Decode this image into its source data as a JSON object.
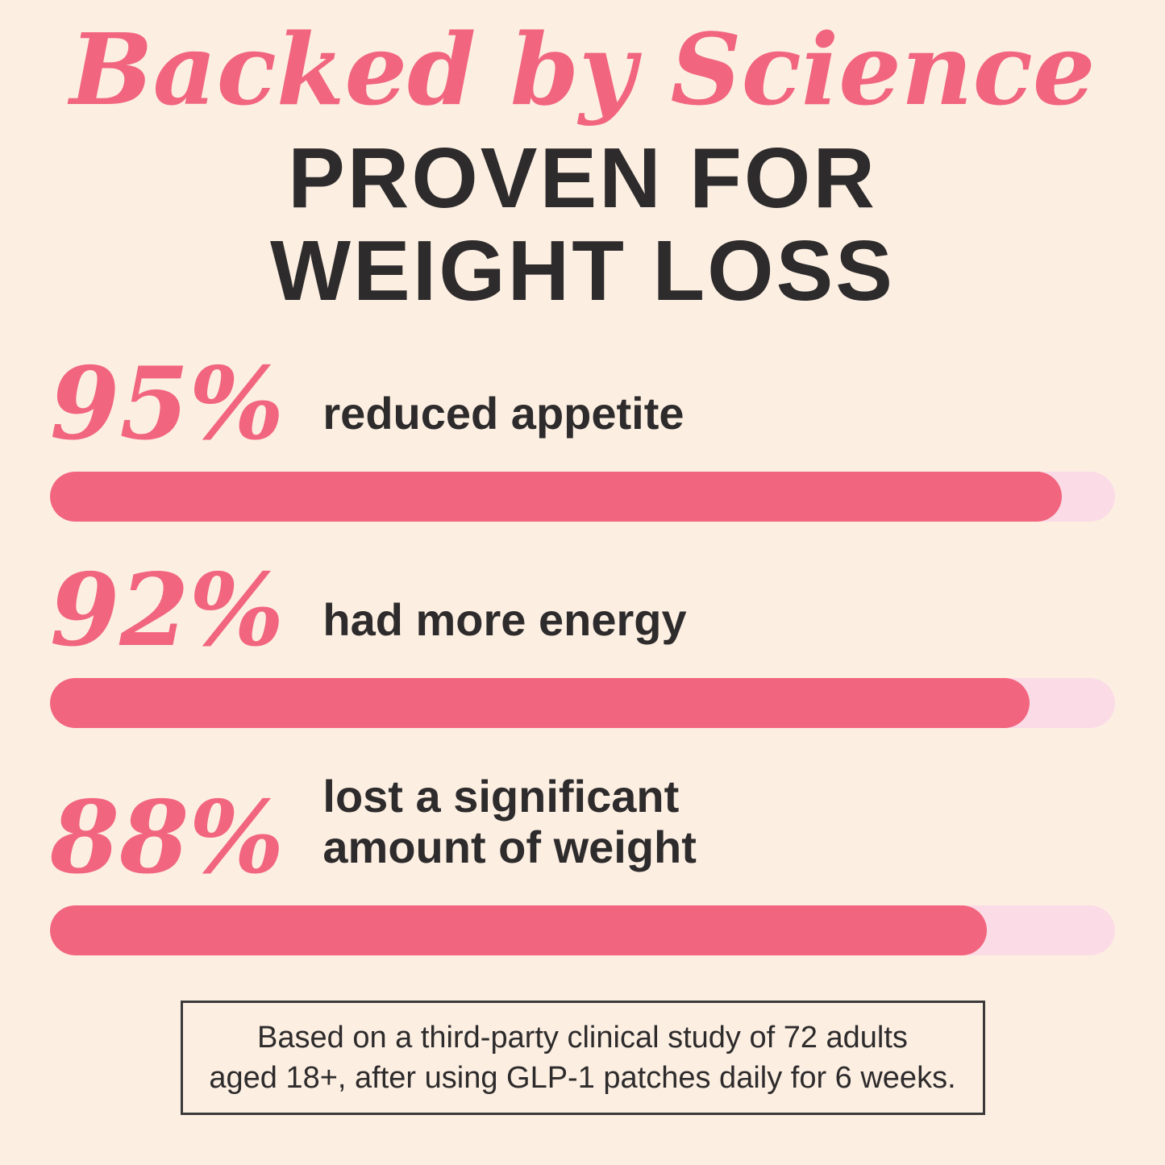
{
  "header": {
    "script_title": "Backed by Science",
    "main_title_line1": "PROVEN FOR",
    "main_title_line2": "WEIGHT LOSS"
  },
  "stats": [
    {
      "percent": "95%",
      "label": "reduced appetite",
      "value": 95
    },
    {
      "percent": "92%",
      "label": "had more energy",
      "value": 92
    },
    {
      "percent": "88%",
      "label": "lost a significant amount of weight",
      "value": 88
    }
  ],
  "footnote": {
    "line1": "Based on a third-party clinical study of 72 adults",
    "line2": "aged 18+, after using GLP-1 patches daily for 6 weeks."
  },
  "colors": {
    "background": "#fcefe2",
    "accent_pink": "#f2657f",
    "bar_track_pink": "#fbdbe6",
    "text_dark": "#2e2b2c",
    "footnote_border": "#3a3a3a"
  },
  "chart_data": {
    "type": "bar",
    "orientation": "horizontal",
    "title": "Backed by Science — PROVEN FOR WEIGHT LOSS",
    "categories": [
      "reduced appetite",
      "had more energy",
      "lost a significant amount of weight"
    ],
    "values": [
      95,
      92,
      88
    ],
    "value_labels": [
      "95%",
      "92%",
      "88%"
    ],
    "xlabel": "",
    "ylabel": "",
    "xlim": [
      0,
      100
    ],
    "grid": false,
    "legend": false,
    "annotation": "Based on a third-party clinical study of 72 adults aged 18+, after using GLP-1 patches daily for 6 weeks."
  }
}
